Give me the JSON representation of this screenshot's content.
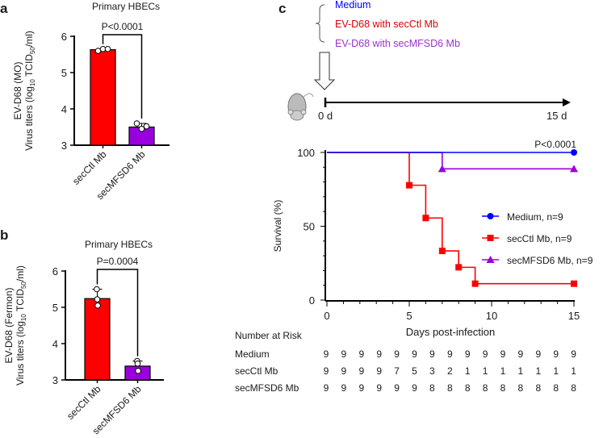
{
  "chart_data": [
    {
      "panel": "a",
      "type": "bar",
      "title": "Primary HBECs",
      "ylabel_line1": "EV-D68 (MO)",
      "ylabel_line2": "Virus titers (log10 TCID50/ml)",
      "ylabel_prefix": "Virus titers (log",
      "ylabel_sub1": "10",
      "ylabel_mid": " TCID",
      "ylabel_sub2": "50",
      "ylabel_suffix": "/ml)",
      "categories": [
        "secCtl Mb",
        "secMFSD6  Mb"
      ],
      "values": [
        5.63,
        3.5
      ],
      "points": [
        [
          5.6,
          5.65,
          5.65
        ],
        [
          3.6,
          3.45,
          3.52
        ]
      ],
      "colors": [
        "#ff0000",
        "#9900dd"
      ],
      "ylim": [
        3,
        6
      ],
      "yticks": [
        "3",
        "4",
        "5",
        "6"
      ],
      "pvalue": "P<0.0001"
    },
    {
      "panel": "b",
      "type": "bar",
      "title": "Primary HBECs",
      "ylabel_line1": "EV-D68 (Fermon)",
      "ylabel_line2": "Virus titers (log10 TCID50/ml)",
      "ylabel_prefix": "Virus titers (log",
      "ylabel_sub1": "10",
      "ylabel_mid": " TCID",
      "ylabel_sub2": "50",
      "ylabel_suffix": "/ml)",
      "categories": [
        "secCtl Mb",
        "secMFSD6  Mb"
      ],
      "values": [
        5.24,
        3.38
      ],
      "points": [
        [
          5.5,
          5.22,
          5.05
        ],
        [
          3.52,
          3.45,
          3.25
        ]
      ],
      "colors": [
        "#ff0000",
        "#9900dd"
      ],
      "ylim": [
        3,
        6
      ],
      "yticks": [
        "3",
        "4",
        "5",
        "6"
      ],
      "pvalue": "P=0.0004"
    },
    {
      "panel": "c",
      "type": "line",
      "subtype": "kaplan-meier",
      "xlabel": "Days post-infection",
      "ylabel": "Survival (%)",
      "xlim": [
        0,
        15
      ],
      "ylim": [
        0,
        100
      ],
      "xticks": [
        "0",
        "5",
        "10",
        "15"
      ],
      "yticks": [
        "0",
        "50",
        "100"
      ],
      "pvalue": "P<0.0001",
      "legend_position": "right",
      "series": [
        {
          "name": "Medium, n=9",
          "color": "#0000ff",
          "marker": "circle",
          "steps": [
            [
              0,
              100
            ],
            [
              15,
              100
            ]
          ],
          "markers": [
            [
              15,
              100
            ]
          ]
        },
        {
          "name": "secCtl Mb, n=9",
          "color": "#ff0000",
          "marker": "square",
          "steps": [
            [
              0,
              100
            ],
            [
              5,
              77.8
            ],
            [
              6,
              55.6
            ],
            [
              7,
              33.3
            ],
            [
              8,
              22.2
            ],
            [
              9,
              11.1
            ],
            [
              15,
              11.1
            ]
          ],
          "markers": [
            [
              5,
              77.8
            ],
            [
              6,
              55.6
            ],
            [
              7,
              33.3
            ],
            [
              8,
              22.2
            ],
            [
              9,
              11.1
            ],
            [
              15,
              11.1
            ]
          ]
        },
        {
          "name": "secMFSD6  Mb, n=9",
          "color": "#9900dd",
          "marker": "triangle",
          "steps": [
            [
              0,
              100
            ],
            [
              7,
              88.9
            ],
            [
              15,
              88.9
            ]
          ],
          "markers": [
            [
              7,
              88.9
            ],
            [
              15,
              88.9
            ]
          ]
        }
      ],
      "risk_table": {
        "title": "Number at Risk",
        "rows": [
          {
            "label": "Medium",
            "values": [
              "9",
              "9",
              "9",
              "9",
              "9",
              "9",
              "9",
              "9",
              "9",
              "9",
              "9",
              "9",
              "9",
              "9",
              "9"
            ]
          },
          {
            "label": "secCtl Mb",
            "values": [
              "9",
              "9",
              "9",
              "9",
              "7",
              "5",
              "3",
              "2",
              "1",
              "1",
              "1",
              "1",
              "1",
              "1",
              "1"
            ]
          },
          {
            "label": "secMFSD6 Mb",
            "values": [
              "9",
              "9",
              "9",
              "9",
              "9",
              "9",
              "8",
              "8",
              "8",
              "8",
              "8",
              "8",
              "8",
              "8",
              "8"
            ]
          }
        ]
      }
    }
  ],
  "panel_labels": [
    "a",
    "b",
    "c"
  ],
  "schematic": {
    "groups": [
      {
        "label": "Medium",
        "color": "#0000ff"
      },
      {
        "label": "EV-D68 with secCtl Mb",
        "color": "#e00000"
      },
      {
        "label": "EV-D68 with secMFSD6  Mb",
        "color": "#9933cc"
      }
    ],
    "timeline_start": "0 d",
    "timeline_end": "15 d",
    "animal_icon": "mouse-icon"
  }
}
